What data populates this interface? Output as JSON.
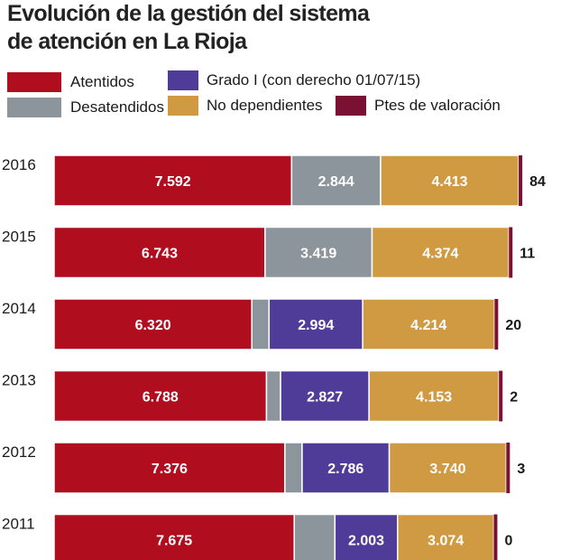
{
  "title_lines": [
    "Evolución de la gestión del sistema",
    "de atención en La Rioja"
  ],
  "legend": [
    {
      "key": "atendidos",
      "label": "Atentidos",
      "color": "#b00d1f"
    },
    {
      "key": "desatendidos",
      "label": "Desatendidos",
      "color": "#8c959b"
    },
    {
      "key": "grado1",
      "label": "Grado I (con derecho 01/07/15)",
      "color": "#4f3c98"
    },
    {
      "key": "no_dependientes",
      "label": "No dependientes",
      "color": "#cf9a41"
    },
    {
      "key": "ptes",
      "label": "Ptes de valoración",
      "color": "#7a1034"
    }
  ],
  "chart_data": {
    "type": "bar",
    "orientation": "horizontal",
    "stacked": true,
    "title": "Evolución de la gestión del sistema de atención en La Rioja",
    "categories": [
      "2016",
      "2015",
      "2014",
      "2013",
      "2012",
      "2011"
    ],
    "series": [
      {
        "key": "atendidos",
        "name": "Atentidos",
        "values": [
          7592,
          6743,
          6320,
          6788,
          7376,
          7675
        ],
        "labels": [
          "7.592",
          "6.743",
          "6.320",
          "6.788",
          "7.376",
          "7.675"
        ]
      },
      {
        "key": "desatendidos",
        "name": "Desatendidos",
        "values": [
          2844,
          3419,
          550,
          450,
          550,
          1300
        ],
        "labels": [
          "2.844",
          "3.419",
          "",
          "",
          "",
          ""
        ]
      },
      {
        "key": "grado1",
        "name": "Grado I (con derecho 01/07/15)",
        "values": [
          0,
          0,
          2994,
          2827,
          2786,
          2003
        ],
        "labels": [
          "",
          "",
          "2.994",
          "2.827",
          "2.786",
          "2.003"
        ]
      },
      {
        "key": "no_dependientes",
        "name": "No dependientes",
        "values": [
          4413,
          4374,
          4214,
          4153,
          3740,
          3074
        ],
        "labels": [
          "4.413",
          "4.374",
          "4.214",
          "4.153",
          "3.740",
          "3.074"
        ]
      },
      {
        "key": "ptes",
        "name": "Ptes de valoración",
        "values": [
          84,
          11,
          20,
          2,
          3,
          0
        ],
        "labels": [
          "84",
          "11",
          "20",
          "2",
          "3",
          "0"
        ]
      }
    ],
    "xlim": [
      0,
      15000
    ],
    "xlabel": "",
    "ylabel": "",
    "grid": false,
    "legend_position": "top"
  }
}
